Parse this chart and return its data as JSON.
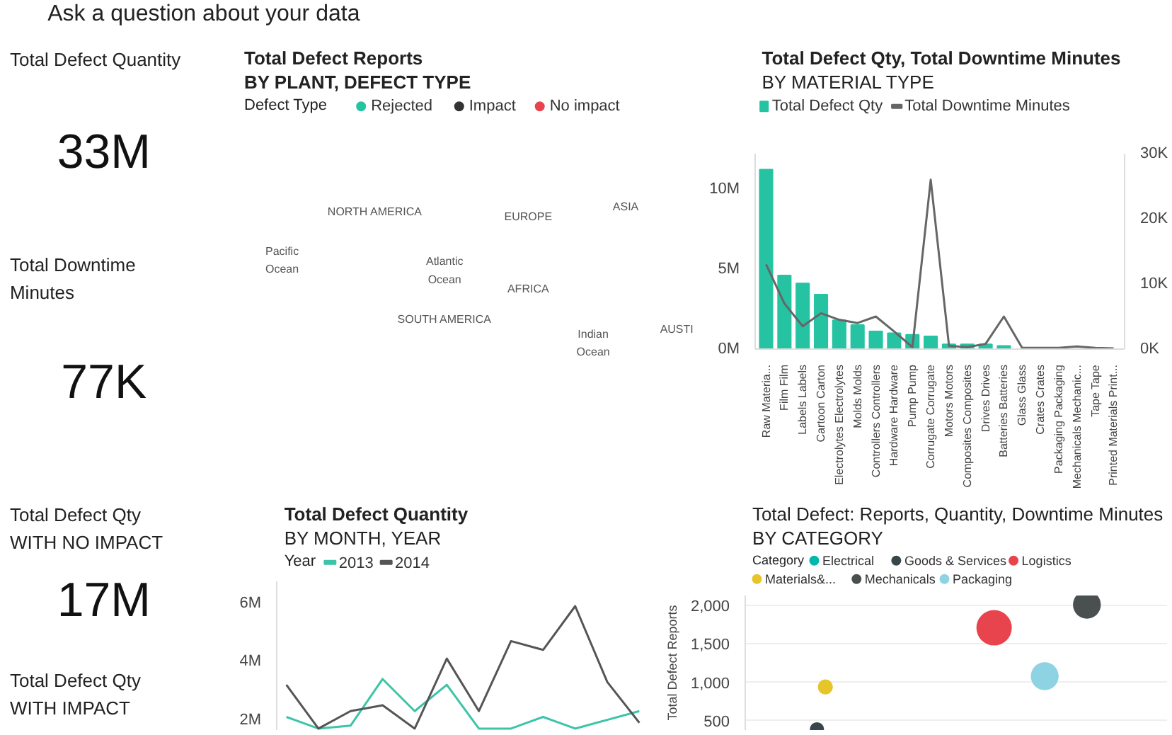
{
  "chart_data": [
    {
      "type": "other",
      "title": "Ask a question about your data"
    },
    {
      "type": "other",
      "title": "Total Defect Quantity",
      "annotations": [
        "33M"
      ]
    },
    {
      "type": "other",
      "title": "Total Defect Reports",
      "subtitle": "BY PLANT, DEFECT TYPE",
      "legend_title": "Defect Type",
      "legend": "top",
      "series": [
        {
          "name": "Rejected",
          "color": "#26c3a3"
        },
        {
          "name": "Impact",
          "color": "#333333"
        },
        {
          "name": "No impact",
          "color": "#e8444e"
        }
      ],
      "annotations": [
        "NORTH AMERICA",
        "ASIA",
        "EUROPE",
        "Pacific Ocean",
        "Atlantic Ocean",
        "AFRICA",
        "SOUTH AMERICA",
        "Indian Ocean",
        "AUSTI"
      ]
    },
    {
      "type": "bar",
      "title": "Total Defect Qty, Total Downtime Minutes",
      "subtitle": "BY MATERIAL TYPE",
      "legend": "top",
      "categories": [
        "Raw Materia...",
        "Film Film",
        "Labels Labels",
        "Cartoon Carton",
        "Electrolytes Electrolytes",
        "Molds Molds",
        "Controllers Controllers",
        "Hardware Hardware",
        "Pump Pump",
        "Corrugate Corrugate",
        "Motors Motors",
        "Composites Composites",
        "Drives Drives",
        "Batteries Batteries",
        "Glass Glass",
        "Crates Crates",
        "Packaging Packaging",
        "Mechanicals Mechanic...",
        "Tape Tape",
        "Printed Materials Print..."
      ],
      "series": [
        {
          "name": "Total Defect Qty",
          "color": "#26c3a3",
          "values": [
            11200000,
            4600000,
            4100000,
            3400000,
            1800000,
            1500000,
            1100000,
            1000000,
            900000,
            800000,
            300000,
            300000,
            300000,
            200000,
            0,
            0,
            0,
            0,
            0,
            0
          ]
        },
        {
          "name": "Total Downtime Minutes",
          "type": "line",
          "axis": "y2",
          "color": "#666666",
          "values": [
            13000,
            7000,
            3500,
            5500,
            4500,
            4000,
            5000,
            2700,
            300,
            26000,
            500,
            300,
            800,
            5000,
            200,
            200,
            200,
            400,
            200,
            100
          ]
        }
      ],
      "ylim": [
        0,
        12200000
      ],
      "yticks": [
        {
          "value": 0,
          "label": "0M"
        },
        {
          "value": 5000000,
          "label": "5M"
        },
        {
          "value": 10000000,
          "label": "10M"
        }
      ],
      "y2lim": [
        0,
        30000
      ],
      "y2ticks": [
        {
          "value": 0,
          "label": "0K"
        },
        {
          "value": 10000,
          "label": "10K"
        },
        {
          "value": 20000,
          "label": "20K"
        },
        {
          "value": 30000,
          "label": "30K"
        }
      ]
    },
    {
      "type": "other",
      "title": "Total Downtime Minutes",
      "annotations": [
        "77K"
      ]
    },
    {
      "type": "other",
      "title": "Total Defect Qty WITH NO IMPACT",
      "annotations": [
        "17M"
      ]
    },
    {
      "type": "line",
      "title": "Total Defect Quantity",
      "subtitle": "BY MONTH, YEAR",
      "legend_title": "Year",
      "legend": "top",
      "tick_labels": "y",
      "categories": [
        null,
        null,
        null,
        null,
        null,
        null,
        null,
        null,
        null,
        null,
        null,
        null
      ],
      "series": [
        {
          "name": "2013",
          "color": "#3cc4a8",
          "values": [
            2100000,
            1700000,
            1800000,
            3400000,
            2300000,
            3200000,
            1700000,
            1700000,
            2100000,
            1700000,
            2000000,
            2300000
          ]
        },
        {
          "name": "2014",
          "color": "#555555",
          "values": [
            3200000,
            1700000,
            2300000,
            2500000,
            1700000,
            4100000,
            2300000,
            4700000,
            4400000,
            5900000,
            3300000,
            1900000
          ]
        }
      ],
      "ylim": [
        1650000,
        6750000
      ],
      "yticks": [
        {
          "value": 2000000,
          "label": "2M"
        },
        {
          "value": 4000000,
          "label": "4M"
        },
        {
          "value": 6000000,
          "label": "6M"
        }
      ]
    },
    {
      "type": "other",
      "title": "Total Defect Qty WITH IMPACT"
    },
    {
      "type": "bubble",
      "title": "Total Defect: Reports, Quantity, Downtime Minutes",
      "subtitle": "BY CATEGORY",
      "legend_title": "Category",
      "legend": "top",
      "ylabel": "Total Defect Reports",
      "tick_labels": "y",
      "grid": "y",
      "series": [
        {
          "name": "Electrical",
          "color": "#01b8aa",
          "values": [
            null,
            null,
            null,
            null,
            null,
            null,
            null,
            null,
            null,
            null,
            null,
            null,
            null,
            null,
            null,
            null,
            null,
            null,
            null,
            null,
            null,
            null,
            null,
            null,
            null,
            null,
            null,
            null,
            null,
            null,
            null,
            null,
            null,
            null,
            null,
            null,
            null,
            null,
            null,
            null,
            null,
            null,
            null,
            null,
            null,
            null,
            null,
            null,
            null,
            null
          ],
          "sizes": [
            null,
            null,
            null,
            null,
            null,
            null,
            null,
            null,
            null,
            null,
            null,
            null,
            null,
            null,
            null,
            null,
            null,
            null,
            null,
            null,
            null,
            null,
            null,
            null,
            null,
            null,
            null,
            null,
            null,
            null,
            null,
            null,
            null,
            null,
            null,
            null,
            null,
            null,
            null,
            null,
            null,
            null,
            null,
            null,
            null,
            null,
            null,
            null,
            null,
            null
          ]
        },
        {
          "name": "Goods & Services",
          "color": "#374649",
          "values": [
            null,
            null,
            null,
            null,
            null,
            null,
            null,
            null,
            390,
            null,
            null,
            null,
            null,
            null,
            null,
            null,
            null,
            null,
            null,
            null,
            null,
            null,
            null,
            null,
            null,
            null,
            null,
            null,
            null,
            null,
            null,
            null,
            null,
            null,
            null,
            null,
            null,
            null,
            null,
            null,
            null,
            null,
            null,
            null,
            null,
            null,
            null,
            null,
            null,
            null
          ],
          "sizes": [
            null,
            null,
            null,
            null,
            null,
            null,
            null,
            null,
            0.16,
            null,
            null,
            null,
            null,
            null,
            null,
            null,
            null,
            null,
            null,
            null,
            null,
            null,
            null,
            null,
            null,
            null,
            null,
            null,
            null,
            null,
            null,
            null,
            null,
            null,
            null,
            null,
            null,
            null,
            null,
            null,
            null,
            null,
            null,
            null,
            null,
            null,
            null,
            null,
            null,
            null
          ]
        },
        {
          "name": "Logistics",
          "color": "#e8444e",
          "values": [
            null,
            null,
            null,
            null,
            null,
            null,
            null,
            null,
            null,
            null,
            null,
            null,
            null,
            null,
            null,
            null,
            null,
            null,
            null,
            null,
            null,
            null,
            null,
            null,
            null,
            null,
            null,
            null,
            null,
            1710,
            null,
            null,
            null,
            null,
            null,
            null,
            null,
            null,
            null,
            null,
            null,
            null,
            null,
            null,
            null,
            null,
            null,
            null,
            null,
            null
          ],
          "sizes": [
            null,
            null,
            null,
            null,
            null,
            null,
            null,
            null,
            null,
            null,
            null,
            null,
            null,
            null,
            null,
            null,
            null,
            null,
            null,
            null,
            null,
            null,
            null,
            null,
            null,
            null,
            null,
            null,
            null,
            1,
            null,
            null,
            null,
            null,
            null,
            null,
            null,
            null,
            null,
            null,
            null,
            null,
            null,
            null,
            null,
            null,
            null,
            null,
            null,
            null
          ]
        },
        {
          "name": "Materials&...",
          "color": "#e6c52a",
          "values": [
            null,
            null,
            null,
            null,
            null,
            null,
            null,
            null,
            null,
            940,
            null,
            null,
            null,
            null,
            null,
            null,
            null,
            null,
            null,
            null,
            null,
            null,
            null,
            null,
            null,
            null,
            null,
            null,
            null,
            null,
            null,
            null,
            null,
            null,
            null,
            null,
            null,
            null,
            null,
            null,
            null,
            null,
            null,
            null,
            null,
            null,
            null,
            null,
            null,
            null
          ],
          "sizes": [
            null,
            null,
            null,
            null,
            null,
            null,
            null,
            null,
            null,
            0.18,
            null,
            null,
            null,
            null,
            null,
            null,
            null,
            null,
            null,
            null,
            null,
            null,
            null,
            null,
            null,
            null,
            null,
            null,
            null,
            null,
            null,
            null,
            null,
            null,
            null,
            null,
            null,
            null,
            null,
            null,
            null,
            null,
            null,
            null,
            null,
            null,
            null,
            null,
            null,
            null
          ]
        },
        {
          "name": "Mechanicals",
          "color": "#4a4f50",
          "values": [
            null,
            null,
            null,
            null,
            null,
            null,
            null,
            null,
            null,
            null,
            null,
            null,
            null,
            null,
            null,
            null,
            null,
            null,
            null,
            null,
            null,
            null,
            null,
            null,
            null,
            null,
            null,
            null,
            null,
            null,
            null,
            null,
            null,
            null,
            null,
            null,
            null,
            null,
            null,
            null,
            2010,
            null,
            null,
            null,
            null,
            null,
            null,
            null,
            null,
            null
          ],
          "sizes": [
            null,
            null,
            null,
            null,
            null,
            null,
            null,
            null,
            null,
            null,
            null,
            null,
            null,
            null,
            null,
            null,
            null,
            null,
            null,
            null,
            null,
            null,
            null,
            null,
            null,
            null,
            null,
            null,
            null,
            null,
            null,
            null,
            null,
            null,
            null,
            null,
            null,
            null,
            null,
            null,
            0.62,
            null,
            null,
            null,
            null,
            null,
            null,
            null,
            null,
            null
          ]
        },
        {
          "name": "Packaging",
          "color": "#8dd3e3",
          "values": [
            null,
            null,
            null,
            null,
            null,
            null,
            null,
            null,
            null,
            null,
            null,
            null,
            null,
            null,
            null,
            null,
            null,
            null,
            null,
            null,
            null,
            null,
            null,
            null,
            null,
            null,
            null,
            null,
            null,
            null,
            null,
            null,
            null,
            null,
            null,
            1080,
            null,
            null,
            null,
            null,
            null,
            null,
            null,
            null,
            null,
            null,
            null,
            null,
            null,
            null
          ],
          "sizes": [
            null,
            null,
            null,
            null,
            null,
            null,
            null,
            null,
            null,
            null,
            null,
            null,
            null,
            null,
            null,
            null,
            null,
            null,
            null,
            null,
            null,
            null,
            null,
            null,
            null,
            null,
            null,
            null,
            null,
            null,
            null,
            null,
            null,
            null,
            null,
            0.62,
            null,
            null,
            null,
            null,
            null,
            null,
            null,
            null,
            null,
            null,
            null,
            null,
            null,
            null
          ]
        }
      ],
      "categories": [
        null,
        null,
        null,
        null,
        null,
        null,
        null,
        null,
        null,
        null,
        null,
        null,
        null,
        null,
        null,
        null,
        null,
        null,
        null,
        null,
        null,
        null,
        null,
        null,
        null,
        null,
        null,
        null,
        null,
        null,
        null,
        null,
        null,
        null,
        null,
        null,
        null,
        null,
        null,
        null,
        null,
        null,
        null,
        null,
        null,
        null,
        null,
        null,
        null,
        null
      ],
      "ylim": [
        380,
        2130
      ],
      "yticks": [
        {
          "value": 500,
          "label": "500"
        },
        {
          "value": 1000,
          "label": "1,000"
        },
        {
          "value": 1500,
          "label": "1,500"
        },
        {
          "value": 2000,
          "label": "2,000"
        }
      ]
    }
  ]
}
